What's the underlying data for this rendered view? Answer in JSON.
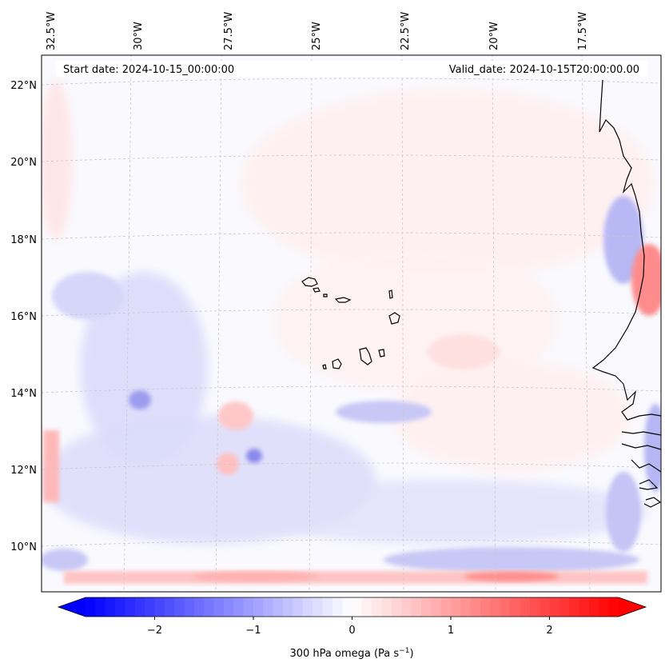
{
  "header": {
    "start_date": "Start date: 2024-10-15_00:00:00",
    "valid_date": "Valid_date: 2024-10-15T20:00:00.00"
  },
  "map": {
    "longitude_labels": [
      "32.5°W",
      "30°W",
      "27.5°W",
      "25°W",
      "22.5°W",
      "20°W",
      "17.5°W"
    ],
    "latitude_labels": [
      "22°N",
      "20°N",
      "18°N",
      "16°N",
      "14°N",
      "12°N",
      "10°N"
    ],
    "field_description": "300 hPa omega",
    "colors": {
      "negative": "#0000ff",
      "zero": "#ffffff",
      "positive": "#ff0000",
      "coast": "#000000",
      "grid": "#c8c8c8"
    }
  },
  "colorbar": {
    "min": -2.7,
    "max": 2.7,
    "ticks": [
      -2,
      -1,
      0,
      1,
      2
    ],
    "tick_labels": [
      "−2",
      "−1",
      "0",
      "1",
      "2"
    ],
    "label_text": "300 hPa omega (Pa s",
    "label_exponent": "−1",
    "label_close": ")"
  }
}
